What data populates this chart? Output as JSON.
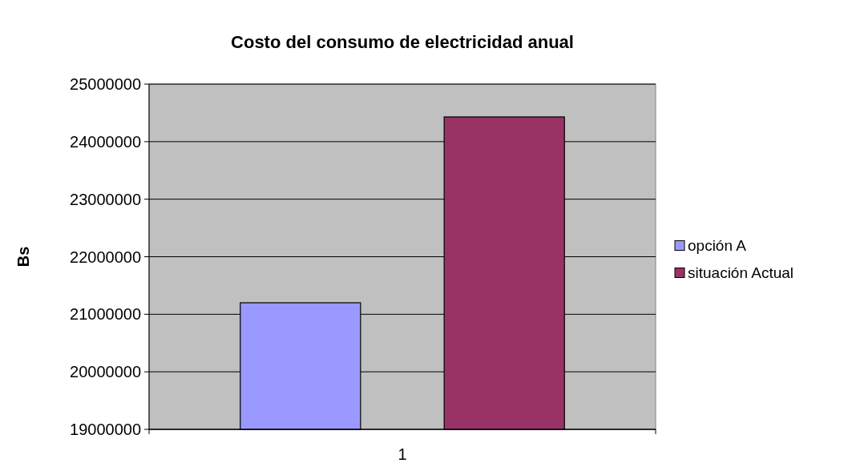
{
  "chart_data": {
    "type": "bar",
    "title": "Costo del consumo de electricidad anual",
    "ylabel": "Bs",
    "categories": [
      "1"
    ],
    "series": [
      {
        "name": "opción A",
        "color": "#9999ff",
        "values": [
          21200000
        ]
      },
      {
        "name": "situación Actual",
        "color": "#993366",
        "values": [
          24430000
        ]
      }
    ],
    "ylim": [
      19000000,
      25000000
    ],
    "yticks": [
      19000000,
      20000000,
      21000000,
      22000000,
      23000000,
      24000000,
      25000000
    ],
    "grid": "y",
    "legend": "right"
  }
}
